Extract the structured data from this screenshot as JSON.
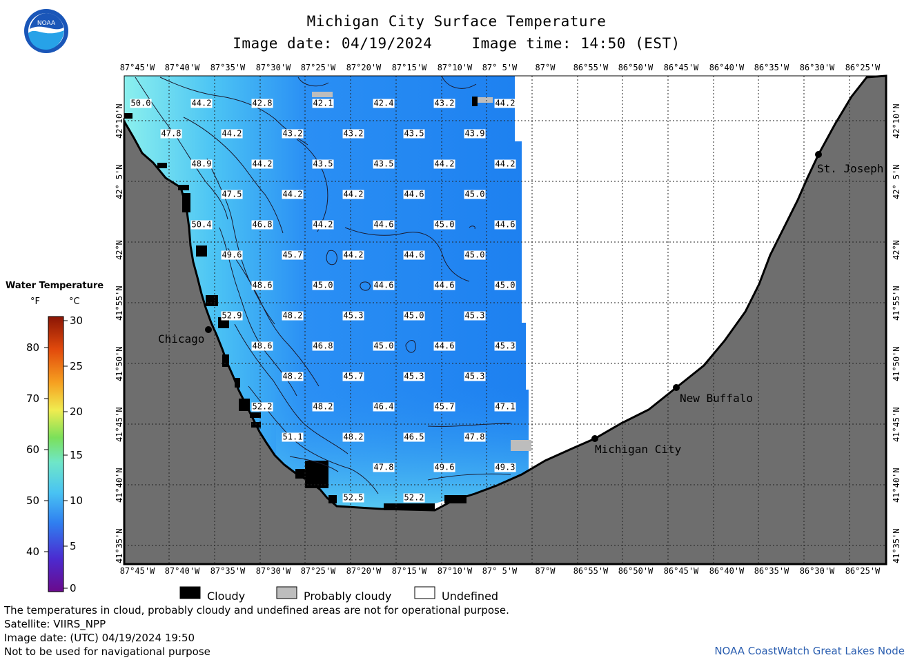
{
  "header": {
    "title": "Michigan City Surface Temperature",
    "image_date": "Image date: 04/19/2024",
    "image_time": "Image time: 14:50 (EST)",
    "logo_text": "NOAA"
  },
  "longitude_ticks": [
    "87°45'W",
    "87°40'W",
    "87°35'W",
    "87°30'W",
    "87°25'W",
    "87°20'W",
    "87°15'W",
    "87°10'W",
    "87° 5'W",
    "87°W",
    "86°55'W",
    "86°50'W",
    "86°45'W",
    "86°40'W",
    "86°35'W",
    "86°30'W",
    "86°25'W"
  ],
  "latitude_ticks": [
    "42°10'N",
    "42° 5'N",
    "42°N",
    "41°55'N",
    "41°50'N",
    "41°45'N",
    "41°40'N",
    "41°35'N"
  ],
  "temperature_labels": [
    "50.0",
    "44.2",
    "42.8",
    "42.1",
    "42.4",
    "43.2",
    "44.2",
    "47.8",
    "44.2",
    "43.2",
    "43.2",
    "43.5",
    "43.9",
    "48.9",
    "44.2",
    "43.5",
    "43.5",
    "44.2",
    "44.2",
    "47.5",
    "44.2",
    "44.2",
    "44.6",
    "45.0",
    "50.4",
    "46.8",
    "44.2",
    "44.6",
    "45.0",
    "44.6",
    "49.6",
    "45.7",
    "44.2",
    "44.6",
    "45.0",
    "48.6",
    "45.0",
    "44.6",
    "44.6",
    "45.0",
    "52.9",
    "48.2",
    "45.3",
    "45.0",
    "45.3",
    "48.6",
    "46.8",
    "45.0",
    "44.6",
    "45.3",
    "48.2",
    "45.7",
    "45.3",
    "45.3",
    "52.2",
    "48.2",
    "46.4",
    "45.7",
    "47.1",
    "51.1",
    "48.2",
    "46.5",
    "47.8",
    "47.8",
    "49.6",
    "49.3",
    "52.5",
    "52.2"
  ],
  "cities": [
    "Chicago",
    "Michigan City",
    "New Buffalo",
    "St. Joseph"
  ],
  "legend": {
    "title": "Water Temperature",
    "unit_f": "°F",
    "unit_c": "°C",
    "fahrenheit_ticks": [
      "80",
      "70",
      "60",
      "50",
      "40"
    ],
    "celsius_ticks": [
      "30",
      "25",
      "20",
      "15",
      "10",
      "5",
      "0"
    ]
  },
  "key": {
    "cloudy": "Cloudy",
    "probably_cloudy": "Probably cloudy",
    "undefined": "Undefined"
  },
  "footer": {
    "disclaimer": "The temperatures in cloud, probably cloudy and undefined areas are not for operational purpose.",
    "satellite": "Satellite: VIIRS_NPP",
    "utc_date": "Image date: (UTC) 04/19/2024  19:50",
    "navigation": "Not to be used for navigational purpose",
    "credit": "NOAA CoastWatch Great Lakes Node"
  },
  "colors": {
    "land": "#6e6e6e",
    "cloudy": "#000000",
    "probably_cloudy": "#bdbdbd",
    "undefined": "#ffffff",
    "cold_water": "#1f7ff0",
    "warm_water": "#7fe6ee",
    "credit_text": "#2c5fb0"
  }
}
